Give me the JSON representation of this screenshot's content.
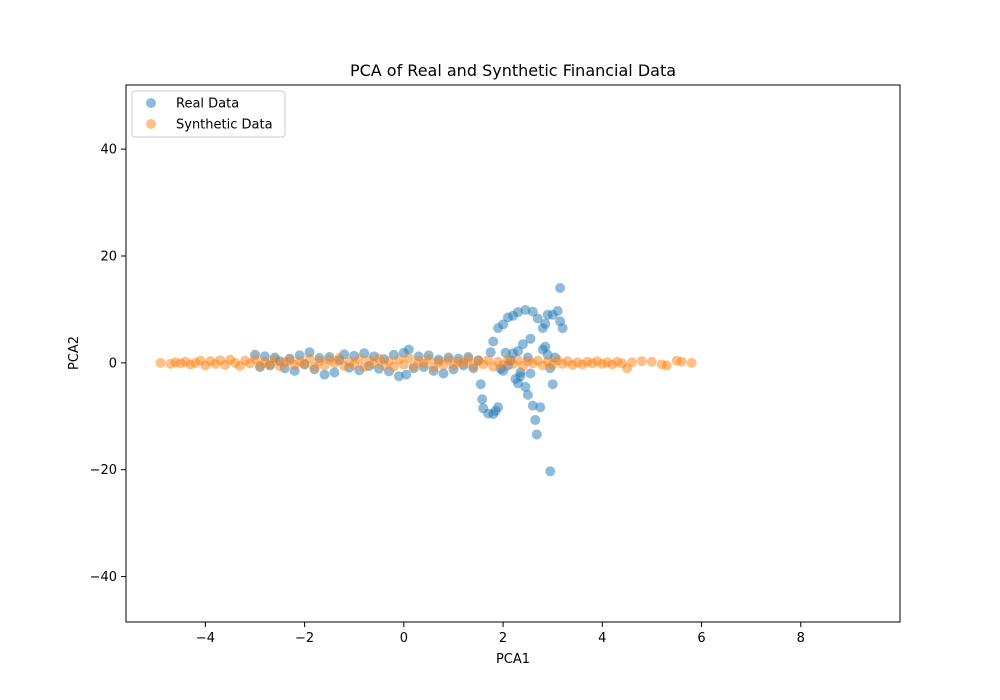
{
  "chart_data": {
    "type": "scatter",
    "title": "PCA of Real and Synthetic Financial Data",
    "xlabel": "PCA1",
    "ylabel": "PCA2",
    "xlim": [
      -5.6,
      10.0
    ],
    "ylim": [
      -48.5,
      52.0
    ],
    "xticks": [
      -4,
      -2,
      0,
      2,
      4,
      6,
      8
    ],
    "yticks": [
      -40,
      -20,
      0,
      20,
      40
    ],
    "grid": false,
    "legend": "upper-left",
    "series": [
      {
        "name": "Real Data",
        "color": "#1f77b4",
        "points": [
          [
            -3.0,
            1.5
          ],
          [
            -2.9,
            -0.8
          ],
          [
            -2.8,
            1.2
          ],
          [
            -2.7,
            -0.5
          ],
          [
            -2.6,
            1.0
          ],
          [
            -2.5,
            0.3
          ],
          [
            -2.4,
            -1.0
          ],
          [
            -2.3,
            0.8
          ],
          [
            -2.2,
            -1.5
          ],
          [
            -2.1,
            1.4
          ],
          [
            -2.0,
            -0.3
          ],
          [
            -1.9,
            2.0
          ],
          [
            -1.8,
            -1.2
          ],
          [
            -1.7,
            0.9
          ],
          [
            -1.6,
            -2.2
          ],
          [
            -1.5,
            1.1
          ],
          [
            -1.4,
            -1.8
          ],
          [
            -1.3,
            0.5
          ],
          [
            -1.2,
            1.6
          ],
          [
            -1.1,
            -0.9
          ],
          [
            -1.0,
            1.3
          ],
          [
            -0.9,
            -1.4
          ],
          [
            -0.8,
            1.8
          ],
          [
            -0.7,
            -0.6
          ],
          [
            -0.6,
            1.2
          ],
          [
            -0.5,
            -1.1
          ],
          [
            -0.4,
            0.7
          ],
          [
            -0.3,
            -1.6
          ],
          [
            -0.2,
            1.5
          ],
          [
            -0.1,
            -2.5
          ],
          [
            0.0,
            1.9
          ],
          [
            0.05,
            -2.2
          ],
          [
            0.1,
            2.5
          ],
          [
            0.2,
            -1.0
          ],
          [
            0.3,
            1.2
          ],
          [
            0.4,
            -0.8
          ],
          [
            0.5,
            1.4
          ],
          [
            0.6,
            -1.5
          ],
          [
            0.7,
            0.6
          ],
          [
            0.8,
            -2.0
          ],
          [
            0.9,
            1.0
          ],
          [
            1.0,
            -1.2
          ],
          [
            1.1,
            0.8
          ],
          [
            1.2,
            -0.5
          ],
          [
            1.3,
            1.1
          ],
          [
            1.4,
            -1.0
          ],
          [
            1.5,
            0.5
          ],
          [
            1.55,
            -4.0
          ],
          [
            1.58,
            -6.8
          ],
          [
            1.6,
            -8.5
          ],
          [
            1.7,
            -9.5
          ],
          [
            1.8,
            -9.6
          ],
          [
            1.85,
            -9.0
          ],
          [
            1.9,
            -8.3
          ],
          [
            1.75,
            2.0
          ],
          [
            1.8,
            4.0
          ],
          [
            1.9,
            6.5
          ],
          [
            2.0,
            7.2
          ],
          [
            2.1,
            8.5
          ],
          [
            2.2,
            8.8
          ],
          [
            2.3,
            9.5
          ],
          [
            2.45,
            9.9
          ],
          [
            2.6,
            9.6
          ],
          [
            2.7,
            8.3
          ],
          [
            2.8,
            6.5
          ],
          [
            2.85,
            3.0
          ],
          [
            2.9,
            1.5
          ],
          [
            2.95,
            -1.0
          ],
          [
            3.0,
            -4.0
          ],
          [
            3.05,
            1.0
          ],
          [
            2.0,
            -1.5
          ],
          [
            2.1,
            -0.5
          ],
          [
            2.2,
            1.8
          ],
          [
            2.25,
            -3.0
          ],
          [
            2.3,
            -3.8
          ],
          [
            2.35,
            -2.5
          ],
          [
            2.4,
            3.5
          ],
          [
            2.45,
            -4.5
          ],
          [
            2.5,
            -6.0
          ],
          [
            2.55,
            4.5
          ],
          [
            2.6,
            -8.0
          ],
          [
            2.65,
            -10.7
          ],
          [
            2.68,
            -13.4
          ],
          [
            2.75,
            -8.3
          ],
          [
            2.8,
            2.5
          ],
          [
            2.85,
            7.3
          ],
          [
            2.9,
            9.0
          ],
          [
            2.95,
            -20.3
          ],
          [
            3.0,
            9.0
          ],
          [
            3.1,
            9.7
          ],
          [
            3.15,
            7.8
          ],
          [
            3.2,
            6.5
          ],
          [
            3.15,
            14.0
          ],
          [
            2.3,
            2.2
          ],
          [
            2.35,
            -1.8
          ],
          [
            2.15,
            0.5
          ],
          [
            2.05,
            1.9
          ],
          [
            1.95,
            -1.1
          ],
          [
            2.5,
            1.0
          ],
          [
            2.55,
            -2.0
          ]
        ]
      },
      {
        "name": "Synthetic Data",
        "color": "#ff7f0e",
        "points": [
          [
            -4.9,
            0.0
          ],
          [
            -4.7,
            -0.2
          ],
          [
            -4.6,
            0.1
          ],
          [
            -4.5,
            -0.1
          ],
          [
            -4.4,
            0.2
          ],
          [
            -4.3,
            -0.3
          ],
          [
            -4.2,
            0.0
          ],
          [
            -4.1,
            0.4
          ],
          [
            -4.0,
            -0.5
          ],
          [
            -3.9,
            0.3
          ],
          [
            -3.8,
            -0.2
          ],
          [
            -3.7,
            0.5
          ],
          [
            -3.6,
            -0.4
          ],
          [
            -3.5,
            0.6
          ],
          [
            -3.4,
            0.0
          ],
          [
            -3.3,
            -0.6
          ],
          [
            -3.2,
            0.4
          ],
          [
            -3.1,
            -0.1
          ],
          [
            -3.0,
            0.7
          ],
          [
            -2.9,
            -0.5
          ],
          [
            -2.8,
            0.2
          ],
          [
            -2.7,
            -0.3
          ],
          [
            -2.6,
            0.6
          ],
          [
            -2.5,
            -0.6
          ],
          [
            -2.4,
            0.1
          ],
          [
            -2.3,
            0.5
          ],
          [
            -2.2,
            -0.4
          ],
          [
            -2.1,
            0.3
          ],
          [
            -2.0,
            -0.2
          ],
          [
            -1.9,
            0.8
          ],
          [
            -1.8,
            -0.7
          ],
          [
            -1.7,
            0.4
          ],
          [
            -1.6,
            -0.5
          ],
          [
            -1.5,
            0.6
          ],
          [
            -1.4,
            -0.1
          ],
          [
            -1.3,
            0.9
          ],
          [
            -1.2,
            -0.6
          ],
          [
            -1.1,
            0.2
          ],
          [
            -1.0,
            -0.3
          ],
          [
            -0.9,
            0.7
          ],
          [
            -0.8,
            -0.8
          ],
          [
            -0.7,
            0.5
          ],
          [
            -0.6,
            -0.2
          ],
          [
            -0.5,
            0.8
          ],
          [
            -0.4,
            -0.5
          ],
          [
            -0.3,
            0.3
          ],
          [
            -0.2,
            -0.7
          ],
          [
            -0.1,
            0.6
          ],
          [
            0.0,
            -0.3
          ],
          [
            0.1,
            0.9
          ],
          [
            0.2,
            -0.6
          ],
          [
            0.3,
            0.4
          ],
          [
            0.4,
            -0.2
          ],
          [
            0.5,
            0.7
          ],
          [
            0.6,
            -0.8
          ],
          [
            0.7,
            0.2
          ],
          [
            0.8,
            -0.4
          ],
          [
            0.9,
            0.6
          ],
          [
            1.0,
            -0.5
          ],
          [
            1.1,
            0.3
          ],
          [
            1.2,
            -0.1
          ],
          [
            1.3,
            0.7
          ],
          [
            1.4,
            -0.6
          ],
          [
            1.5,
            0.4
          ],
          [
            1.6,
            -0.3
          ],
          [
            1.7,
            0.5
          ],
          [
            1.8,
            -0.7
          ],
          [
            1.9,
            0.2
          ],
          [
            2.0,
            -0.4
          ],
          [
            2.1,
            0.6
          ],
          [
            2.2,
            -0.2
          ],
          [
            2.3,
            0.5
          ],
          [
            2.4,
            -0.6
          ],
          [
            2.5,
            0.3
          ],
          [
            2.6,
            -0.1
          ],
          [
            2.7,
            0.4
          ],
          [
            2.8,
            -0.5
          ],
          [
            2.9,
            0.2
          ],
          [
            3.0,
            -0.3
          ],
          [
            3.1,
            0.5
          ],
          [
            3.2,
            -0.2
          ],
          [
            3.3,
            0.3
          ],
          [
            3.4,
            -0.4
          ],
          [
            3.5,
            0.1
          ],
          [
            3.6,
            -0.3
          ],
          [
            3.7,
            0.2
          ],
          [
            3.8,
            -0.1
          ],
          [
            3.9,
            0.3
          ],
          [
            4.0,
            -0.2
          ],
          [
            4.1,
            0.1
          ],
          [
            4.2,
            -0.3
          ],
          [
            4.3,
            0.2
          ],
          [
            4.4,
            -0.1
          ],
          [
            4.5,
            -1.0
          ],
          [
            4.6,
            0.1
          ],
          [
            4.8,
            0.3
          ],
          [
            5.0,
            0.2
          ],
          [
            5.2,
            -0.3
          ],
          [
            5.3,
            -0.5
          ],
          [
            5.5,
            0.4
          ],
          [
            5.6,
            0.2
          ],
          [
            5.8,
            0.0
          ]
        ]
      }
    ]
  }
}
